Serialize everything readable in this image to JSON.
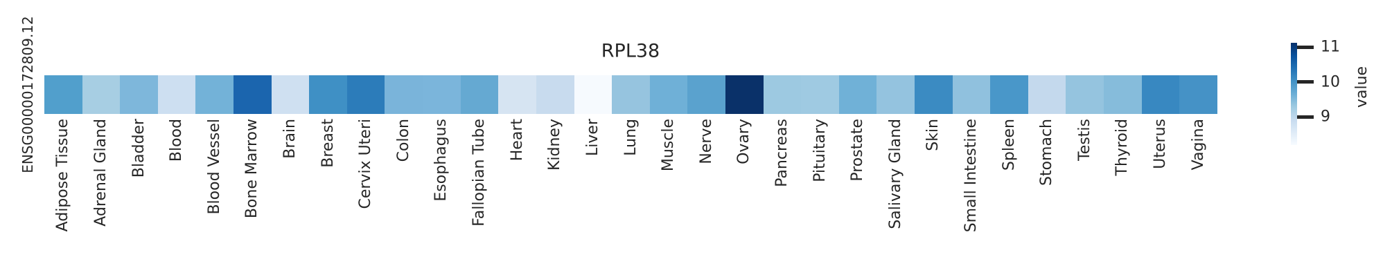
{
  "figure": {
    "title": "RPL38",
    "row_label": "ENSG00000172809.12",
    "colorbar": {
      "label": "value",
      "ticks": [
        11,
        10,
        9
      ],
      "vmin": 8.2,
      "vmax": 11.12,
      "gradient_top_to_bottom": [
        "#08306b",
        "#08519c",
        "#2171b5",
        "#4292c6",
        "#6baed6",
        "#9ecae1",
        "#c6dbef",
        "#deebf7",
        "#f7fbff"
      ]
    }
  },
  "chart_data": {
    "type": "heatmap",
    "title": "RPL38",
    "rows": [
      "ENSG00000172809.12"
    ],
    "categories": [
      "Adipose Tissue",
      "Adrenal Gland",
      "Bladder",
      "Blood",
      "Blood Vessel",
      "Bone Marrow",
      "Brain",
      "Breast",
      "Cervix Uteri",
      "Colon",
      "Esophagus",
      "Fallopian Tube",
      "Heart",
      "Kidney",
      "Liver",
      "Lung",
      "Muscle",
      "Nerve",
      "Ovary",
      "Pancreas",
      "Pituitary",
      "Prostate",
      "Salivary Gland",
      "Skin",
      "Small Intestine",
      "Spleen",
      "Stomach",
      "Testis",
      "Thyroid",
      "Uterus",
      "Vagina"
    ],
    "values": [
      [
        9.9,
        9.3,
        9.5,
        8.8,
        9.6,
        10.5,
        8.8,
        10.0,
        10.3,
        9.5,
        9.5,
        9.7,
        8.7,
        8.9,
        8.2,
        9.4,
        9.6,
        9.8,
        11.1,
        9.3,
        9.3,
        9.6,
        9.4,
        10.1,
        9.4,
        10.0,
        9.0,
        9.4,
        9.5,
        10.1,
        10.0
      ]
    ],
    "cell_colors": [
      [
        "#519fcc",
        "#a7cee3",
        "#7eb7db",
        "#cddff1",
        "#73b2d8",
        "#1b65ae",
        "#cfe0f1",
        "#3f90c5",
        "#2c7cba",
        "#7ab4da",
        "#7bb5db",
        "#65a9d2",
        "#d6e4f2",
        "#c8dbee",
        "#f6fafe",
        "#96c4df",
        "#6fb0d7",
        "#5aa2ce",
        "#0a3169",
        "#9dc9e1",
        "#9fcae2",
        "#70b1d7",
        "#94c3df",
        "#3b8bc2",
        "#90c1de",
        "#4997c9",
        "#c4d9ed",
        "#95c4df",
        "#86bcdb",
        "#3888c1",
        "#4592c6"
      ]
    ],
    "colormap": "Blues",
    "colorbar_label": "value",
    "colorbar_ticks": [
      9,
      10,
      11
    ],
    "vlim": [
      8.2,
      11.12
    ],
    "grid": false,
    "legend_position": "right"
  }
}
